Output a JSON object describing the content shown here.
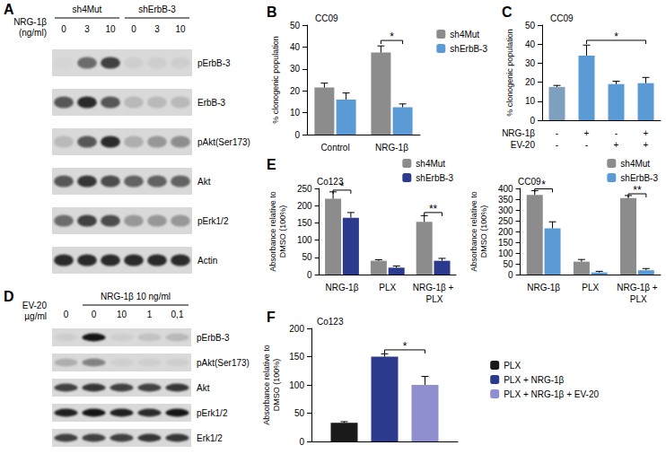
{
  "blots": [
    {
      "panel": "A",
      "lane_title": "NRG-1β\n(ng/ml)",
      "lanes": [
        "0",
        "3",
        "10",
        "0",
        "3",
        "10"
      ],
      "groups": [
        {
          "label": "sh4Mut",
          "first_lane": 0,
          "last_lane": 2
        },
        {
          "label": "shErbB-3",
          "first_lane": 3,
          "last_lane": 5
        }
      ],
      "rows": [
        {
          "label": "pErbB-3",
          "bands": [
            0.02,
            0.5,
            0.7,
            0.05,
            0.05,
            0.05
          ]
        },
        {
          "label": "ErbB-3",
          "bands": [
            0.6,
            0.8,
            0.6,
            0.15,
            0.15,
            0.15
          ]
        },
        {
          "label": "pAkt(Ser173)",
          "bands": [
            0.15,
            0.6,
            0.8,
            0.2,
            0.3,
            0.35
          ]
        },
        {
          "label": "Akt",
          "bands": [
            0.6,
            0.75,
            0.65,
            0.55,
            0.55,
            0.55
          ]
        },
        {
          "label": "pErk1/2",
          "bands": [
            0.5,
            0.7,
            0.65,
            0.3,
            0.3,
            0.3
          ]
        },
        {
          "label": "Actin",
          "bands": [
            0.8,
            0.8,
            0.8,
            0.8,
            0.8,
            0.8
          ]
        }
      ]
    },
    {
      "panel": "D",
      "lane_title": "EV-20\nµg/ml",
      "lanes": [
        "0",
        "0",
        "10",
        "1",
        "0,1"
      ],
      "groups": [
        {
          "label": "NRG-1β 10 ng/ml",
          "first_lane": 1,
          "last_lane": 4
        }
      ],
      "rows": [
        {
          "label": "pErbB-3",
          "bands": [
            0.05,
            0.9,
            0.05,
            0.1,
            0.15
          ]
        },
        {
          "label": "pAkt(Ser173)",
          "bands": [
            0.2,
            0.4,
            0.05,
            0.05,
            0.05
          ]
        },
        {
          "label": "Akt",
          "bands": [
            0.7,
            0.75,
            0.7,
            0.7,
            0.75
          ]
        },
        {
          "label": "pErk1/2",
          "bands": [
            0.85,
            0.9,
            0.85,
            0.8,
            0.9
          ]
        },
        {
          "label": "Erk1/2",
          "bands": [
            0.7,
            0.7,
            0.7,
            0.75,
            0.75
          ]
        }
      ]
    }
  ],
  "chart_data": [
    {
      "panel": "B",
      "type": "bar",
      "title": "CC09",
      "y_label": "% clonogenic population",
      "categories": [
        "Control",
        "NRG-1β"
      ],
      "series": [
        {
          "name": "sh4Mut",
          "color": "#8c8c8c",
          "values": [
            21.5,
            37.5
          ],
          "errors": [
            2,
            3
          ]
        },
        {
          "name": "shErbB-3",
          "color": "#5b9bd5",
          "values": [
            16,
            12.5
          ],
          "errors": [
            3,
            1.5
          ]
        }
      ],
      "ylim": [
        0,
        50
      ],
      "yticks": [
        0,
        10,
        20,
        30,
        40,
        50
      ],
      "grid": false,
      "legend": "upper right",
      "annotations": [
        {
          "text": "*",
          "from": [
            1,
            0
          ],
          "to": [
            1,
            1
          ],
          "y": 43
        }
      ]
    },
    {
      "panel": "C",
      "type": "bar",
      "title": "CC09",
      "y_label": "% clonogenic population",
      "conditions": [
        {
          "label": "NRG-1β",
          "values": [
            "-",
            "+",
            "-",
            "+"
          ]
        },
        {
          "label": "EV-20",
          "values": [
            "-",
            "-",
            "+",
            "+"
          ]
        }
      ],
      "series": [
        {
          "colors": [
            "#7f9fbf",
            "#5b9bd5",
            "#5b9bd5",
            "#5b9bd5"
          ],
          "values": [
            17.5,
            34,
            19,
            19.5
          ],
          "errors": [
            0.8,
            5.5,
            1.5,
            3
          ]
        }
      ],
      "ylim": [
        0,
        50
      ],
      "yticks": [
        0,
        10,
        20,
        30,
        40,
        50
      ],
      "grid": false,
      "annotations": [
        {
          "text": "*",
          "from": [
            1,
            0
          ],
          "to": [
            3,
            0
          ],
          "y": 42
        }
      ]
    },
    {
      "panel": "E",
      "type": "bar",
      "title": "Co123",
      "y_label": "Absorbance relative to\nDMSO (100%)",
      "categories": [
        "NRG-1β",
        "PLX",
        "NRG-1β + PLX"
      ],
      "series": [
        {
          "name": "sh4Mut",
          "color": "#8c8c8c",
          "values": [
            220,
            40,
            153
          ],
          "errors": [
            20,
            3,
            18
          ]
        },
        {
          "name": "shErbB-3",
          "color": "#2b3a8c",
          "values": [
            165,
            20,
            40
          ],
          "errors": [
            15,
            5,
            7
          ]
        }
      ],
      "ylim": [
        0,
        250
      ],
      "yticks": [
        0,
        50,
        100,
        150,
        200,
        250
      ],
      "grid": false,
      "legend": "upper right",
      "annotations": [
        {
          "text": "*",
          "from": [
            0,
            0
          ],
          "to": [
            0,
            1
          ],
          "y": 245
        },
        {
          "text": "**",
          "from": [
            2,
            0
          ],
          "to": [
            2,
            1
          ],
          "y": 180
        }
      ]
    },
    {
      "type": "bar",
      "title": "CC09",
      "y_label": "Absorbance relative to\nDMSO (100%)",
      "categories": [
        "NRG-1β",
        "PLX",
        "NRG-1β + PLX"
      ],
      "series": [
        {
          "name": "sh4Mut",
          "color": "#8c8c8c",
          "values": [
            370,
            60,
            355
          ],
          "errors": [
            20,
            10,
            12
          ]
        },
        {
          "name": "shErbB-3",
          "color": "#5b9bd5",
          "values": [
            215,
            10,
            20
          ],
          "errors": [
            30,
            5,
            8
          ]
        }
      ],
      "ylim": [
        0,
        400
      ],
      "yticks": [
        0,
        50,
        100,
        150,
        200,
        250,
        300,
        350,
        400
      ],
      "grid": false,
      "legend": "upper right",
      "annotations": [
        {
          "text": "*",
          "from": [
            0,
            0
          ],
          "to": [
            0,
            1
          ],
          "y": 398
        },
        {
          "text": "**",
          "from": [
            2,
            0
          ],
          "to": [
            2,
            1
          ],
          "y": 375
        }
      ]
    },
    {
      "panel": "F",
      "type": "bar",
      "title": "Co123",
      "y_label": "Absorbance relative to\nDMSO (100%)",
      "categories": [
        null
      ],
      "series": [
        {
          "name": "PLX",
          "color": "#1a1a1a",
          "values": [
            33
          ],
          "errors": [
            2
          ]
        },
        {
          "name": "PLX + NRG-1β",
          "color": "#2b3a8c",
          "values": [
            150
          ],
          "errors": [
            5
          ]
        },
        {
          "name": "PLX + NRG-1β + EV-20",
          "color": "#8f8fcf",
          "values": [
            100
          ],
          "errors": [
            15
          ]
        }
      ],
      "ylim": [
        0,
        200
      ],
      "yticks": [
        0,
        50,
        100,
        150,
        200
      ],
      "grid": false,
      "legend": "center right",
      "annotations": [
        {
          "text": "*",
          "from": [
            0,
            1
          ],
          "to": [
            0,
            2
          ],
          "y": 162
        }
      ]
    }
  ]
}
